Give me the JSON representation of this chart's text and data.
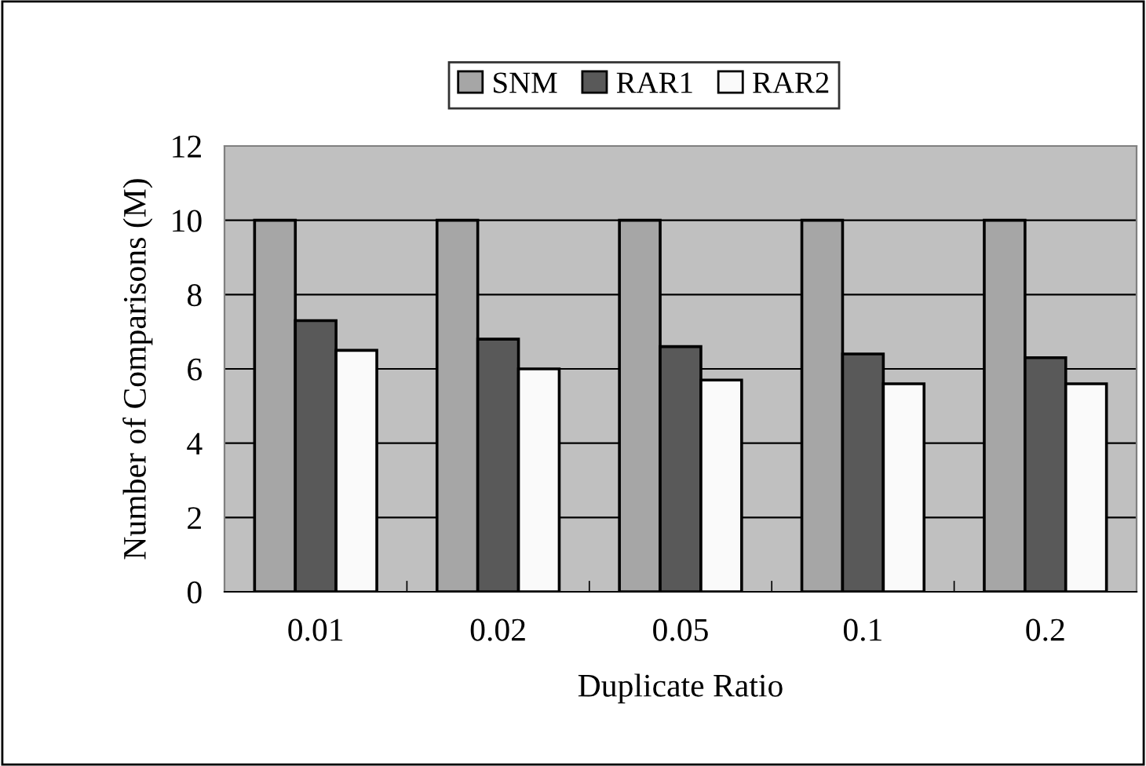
{
  "chart_data": {
    "type": "bar",
    "xlabel": "Duplicate Ratio",
    "ylabel": "Number of Comparisons (M)",
    "categories": [
      "0.01",
      "0.02",
      "0.05",
      "0.1",
      "0.2"
    ],
    "series": [
      {
        "name": "SNM",
        "color": "#a6a6a6",
        "values": [
          10,
          10,
          10,
          10,
          10
        ]
      },
      {
        "name": "RAR1",
        "color": "#595959",
        "values": [
          7.3,
          6.8,
          6.6,
          6.4,
          6.3
        ]
      },
      {
        "name": "RAR2",
        "color": "#fafafa",
        "values": [
          6.5,
          6.0,
          5.7,
          5.6,
          5.6
        ]
      }
    ],
    "ylim": [
      0,
      12
    ],
    "yticks": [
      0,
      2,
      4,
      6,
      8,
      10,
      12
    ],
    "grid": "y",
    "legend": "top"
  }
}
